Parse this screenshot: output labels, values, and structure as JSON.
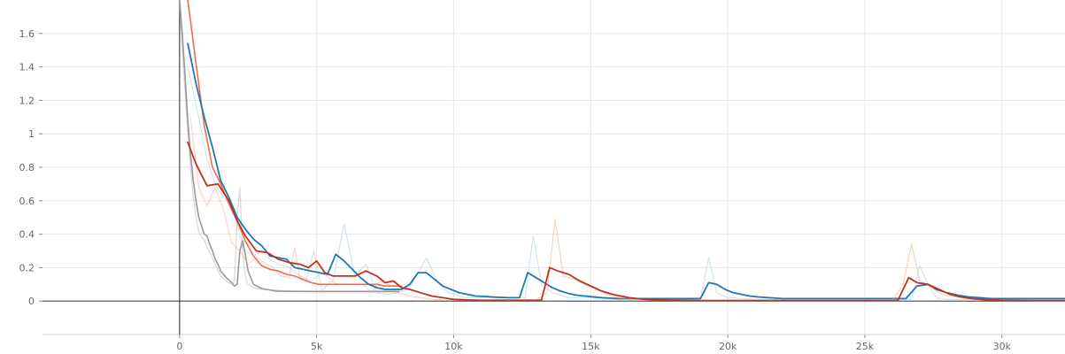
{
  "chart_data": {
    "type": "line",
    "title": "",
    "xlabel": "",
    "ylabel": "",
    "xlim": [
      -5000,
      32300
    ],
    "ylim": [
      -0.2,
      1.8
    ],
    "grid": true,
    "x_ticks": [
      0,
      5000,
      10000,
      15000,
      20000,
      25000,
      30000
    ],
    "x_tick_labels": [
      "0",
      "5k",
      "10k",
      "15k",
      "20k",
      "25k",
      "30k"
    ],
    "y_ticks": [
      0,
      0.2,
      0.4,
      0.6,
      0.8,
      1.0,
      1.2,
      1.4,
      1.6
    ],
    "y_tick_labels": [
      "0",
      "0.2",
      "0.4",
      "0.6",
      "0.8",
      "1",
      "1.2",
      "1.4",
      "1.6"
    ],
    "series": [
      {
        "color": "#aaaaaa",
        "opacity": 0.45,
        "width": 1.2,
        "x": [
          0,
          100,
          200,
          300,
          400,
          500,
          600,
          700,
          800,
          900,
          1000,
          1100,
          1200,
          1300,
          1400,
          1500,
          1700,
          1900,
          2000,
          2100,
          2200,
          2300,
          2400,
          2500,
          2700,
          3000,
          3500,
          4000,
          5000,
          6000,
          7000,
          8000
        ],
        "y": [
          1.75,
          1.5,
          1.25,
          1.0,
          0.8,
          0.62,
          0.5,
          0.42,
          0.38,
          0.37,
          0.32,
          0.29,
          0.26,
          0.22,
          0.18,
          0.15,
          0.12,
          0.1,
          0.12,
          0.5,
          0.68,
          0.3,
          0.15,
          0.1,
          0.08,
          0.07,
          0.065,
          0.06,
          0.06,
          0.06,
          0.06,
          0.06
        ]
      },
      {
        "color": "#999999",
        "opacity": 1.0,
        "width": 1.6,
        "x": [
          0,
          100,
          200,
          300,
          400,
          500,
          600,
          700,
          800,
          900,
          1000,
          1100,
          1200,
          1300,
          1400,
          1500,
          1700,
          1900,
          2000,
          2100,
          2200,
          2300,
          2400,
          2500,
          2700,
          3000,
          3500,
          4000,
          5000,
          6000,
          7000,
          8000
        ],
        "y": [
          1.8,
          1.6,
          1.35,
          1.08,
          0.88,
          0.72,
          0.6,
          0.5,
          0.45,
          0.4,
          0.39,
          0.34,
          0.3,
          0.25,
          0.22,
          0.18,
          0.14,
          0.11,
          0.09,
          0.1,
          0.3,
          0.36,
          0.28,
          0.18,
          0.1,
          0.075,
          0.06,
          0.058,
          0.057,
          0.057,
          0.057,
          0.057
        ]
      },
      {
        "color": "#f4a582",
        "opacity": 0.45,
        "width": 1.2,
        "x": [
          400,
          700,
          1000,
          1300,
          1600,
          1900,
          2200,
          2500,
          2800,
          3100,
          3400,
          3700,
          4000,
          4200,
          4400,
          4600,
          4900,
          5200,
          5500,
          5800,
          6100,
          6400,
          6700,
          7000,
          7300,
          7600,
          7900,
          8200
        ],
        "y": [
          1.1,
          0.68,
          0.57,
          0.68,
          0.55,
          0.35,
          0.3,
          0.22,
          0.26,
          0.23,
          0.2,
          0.15,
          0.14,
          0.32,
          0.13,
          0.12,
          0.3,
          0.06,
          0.12,
          0.1,
          0.1,
          0.1,
          0.1,
          0.05,
          0.12,
          0.1,
          0.09,
          0.08
        ]
      },
      {
        "color": "#f06e4c",
        "opacity": 1.0,
        "width": 1.6,
        "x": [
          300,
          600,
          900,
          1200,
          1500,
          1800,
          2100,
          2400,
          2700,
          3000,
          3300,
          3600,
          3900,
          4200,
          4500,
          4800,
          5100,
          5400,
          5700,
          6000,
          6300,
          6600,
          6900,
          7200,
          7500,
          7800,
          8100
        ],
        "y": [
          1.85,
          1.42,
          1.05,
          0.8,
          0.7,
          0.58,
          0.48,
          0.36,
          0.27,
          0.21,
          0.19,
          0.18,
          0.16,
          0.15,
          0.13,
          0.11,
          0.1,
          0.1,
          0.1,
          0.1,
          0.1,
          0.1,
          0.1,
          0.1,
          0.09,
          0.09,
          0.09
        ]
      },
      {
        "color": "#92c5de",
        "opacity": 0.45,
        "width": 1.2,
        "x": [
          300,
          700,
          1000,
          1300,
          1600,
          2000,
          2300,
          2700,
          3000,
          3300,
          3600,
          4000,
          4400,
          4800,
          5200,
          5600,
          6000,
          6400,
          6800,
          7200,
          7600,
          8000,
          8400,
          8800,
          9000,
          9400,
          9800,
          10400,
          11000,
          12000,
          12600,
          12900,
          13200,
          13600,
          14200,
          15000,
          16000,
          17000,
          18000,
          19000,
          19300,
          19600,
          20000,
          21000,
          22000,
          23000,
          24000,
          25000,
          26000,
          26700,
          27000,
          27300,
          27600,
          28000,
          29000,
          30000,
          31000,
          32300
        ],
        "y": [
          1.4,
          1.1,
          0.85,
          0.7,
          0.62,
          0.55,
          0.32,
          0.27,
          0.3,
          0.25,
          0.22,
          0.2,
          0.15,
          0.12,
          0.17,
          0.12,
          0.46,
          0.15,
          0.22,
          0.05,
          0.04,
          0.05,
          0.08,
          0.2,
          0.26,
          0.12,
          0.05,
          0.02,
          0.02,
          0.02,
          0.02,
          0.39,
          0.1,
          0.05,
          0.02,
          0.02,
          0.01,
          0.01,
          0.01,
          0.01,
          0.26,
          0.05,
          0.02,
          0.01,
          0.01,
          0.01,
          0.01,
          0.01,
          0.01,
          0.01,
          0.21,
          0.1,
          0.02,
          0.01,
          0.01,
          0.01,
          0.01,
          0.01
        ]
      },
      {
        "color": "#1f77b4",
        "opacity": 1.0,
        "width": 1.8,
        "x": [
          300,
          600,
          900,
          1200,
          1500,
          1800,
          2100,
          2400,
          2700,
          3000,
          3300,
          3600,
          3900,
          4200,
          4500,
          4800,
          5100,
          5400,
          5700,
          6000,
          6300,
          6600,
          6900,
          7200,
          7500,
          7800,
          8100,
          8400,
          8700,
          9000,
          9300,
          9600,
          9900,
          10200,
          10500,
          10800,
          11100,
          11400,
          11700,
          12000,
          12400,
          12700,
          13000,
          13300,
          13600,
          13900,
          14200,
          14500,
          14800,
          15100,
          15400,
          16000,
          17000,
          18000,
          19000,
          19300,
          19600,
          19900,
          20200,
          20500,
          20800,
          21100,
          21500,
          22000,
          23000,
          24000,
          25000,
          26000,
          26500,
          26900,
          27300,
          27600,
          28000,
          28400,
          28800,
          29200,
          29600,
          30000,
          31000,
          32300
        ],
        "y": [
          1.54,
          1.3,
          1.1,
          0.92,
          0.72,
          0.62,
          0.5,
          0.43,
          0.37,
          0.33,
          0.27,
          0.26,
          0.25,
          0.2,
          0.19,
          0.18,
          0.17,
          0.16,
          0.28,
          0.24,
          0.19,
          0.14,
          0.1,
          0.08,
          0.07,
          0.07,
          0.07,
          0.1,
          0.17,
          0.17,
          0.13,
          0.09,
          0.07,
          0.05,
          0.04,
          0.03,
          0.028,
          0.025,
          0.022,
          0.02,
          0.02,
          0.17,
          0.14,
          0.11,
          0.08,
          0.06,
          0.045,
          0.035,
          0.03,
          0.025,
          0.02,
          0.015,
          0.015,
          0.015,
          0.015,
          0.11,
          0.1,
          0.07,
          0.05,
          0.04,
          0.03,
          0.025,
          0.02,
          0.015,
          0.015,
          0.015,
          0.015,
          0.015,
          0.015,
          0.09,
          0.1,
          0.07,
          0.05,
          0.035,
          0.025,
          0.02,
          0.015,
          0.015,
          0.015,
          0.015
        ]
      },
      {
        "color": "#f4a582",
        "opacity": 0.5,
        "width": 1.2,
        "x": [
          8000,
          8400,
          8800,
          9200,
          9600,
          10000,
          11000,
          12000,
          13000,
          13400,
          13700,
          14000,
          14400,
          14800,
          15200,
          15600,
          16000,
          17000,
          18000,
          19000,
          20000,
          21000,
          22000,
          23000,
          24000,
          25000,
          26000,
          26400,
          26700,
          27000,
          27300,
          27600,
          28000,
          29000,
          30000,
          31000,
          32300
        ],
        "y": [
          0.05,
          0.03,
          0.02,
          0.01,
          0.005,
          0.005,
          0.005,
          0.005,
          0.005,
          0.05,
          0.49,
          0.15,
          0.13,
          0.1,
          0.07,
          0.04,
          0.02,
          0.01,
          0.005,
          0.005,
          0.005,
          0.005,
          0.005,
          0.005,
          0.005,
          0.005,
          0.005,
          0.1,
          0.34,
          0.12,
          0.1,
          0.06,
          0.03,
          0.01,
          0.005,
          0.005,
          0.005
        ]
      },
      {
        "color": "#c0321b",
        "opacity": 1.0,
        "width": 1.8,
        "x": [
          300,
          600,
          1000,
          1400,
          1800,
          2100,
          2400,
          2800,
          3200,
          3600,
          4000,
          4400,
          4700,
          5000,
          5300,
          5600,
          6000,
          6400,
          6800,
          7200,
          7500,
          7800,
          8100,
          8400,
          8800,
          9200,
          9600,
          10000,
          10500,
          11000,
          12000,
          13200,
          13500,
          13800,
          14200,
          14600,
          15000,
          15400,
          15800,
          16400,
          17000,
          18000,
          19000,
          20000,
          21000,
          22000,
          23000,
          24000,
          25000,
          26200,
          26600,
          26900,
          27300,
          27700,
          28100,
          28500,
          28900,
          29400,
          30000,
          31000,
          32300
        ],
        "y": [
          0.95,
          0.82,
          0.69,
          0.7,
          0.6,
          0.48,
          0.39,
          0.3,
          0.29,
          0.25,
          0.23,
          0.22,
          0.2,
          0.24,
          0.17,
          0.15,
          0.15,
          0.15,
          0.18,
          0.15,
          0.11,
          0.12,
          0.08,
          0.07,
          0.05,
          0.03,
          0.02,
          0.01,
          0.007,
          0.005,
          0.005,
          0.005,
          0.2,
          0.18,
          0.16,
          0.12,
          0.09,
          0.06,
          0.04,
          0.02,
          0.01,
          0.005,
          0.003,
          0.003,
          0.003,
          0.003,
          0.003,
          0.003,
          0.003,
          0.003,
          0.14,
          0.11,
          0.1,
          0.07,
          0.04,
          0.025,
          0.015,
          0.008,
          0.005,
          0.003,
          0.003
        ]
      }
    ]
  }
}
